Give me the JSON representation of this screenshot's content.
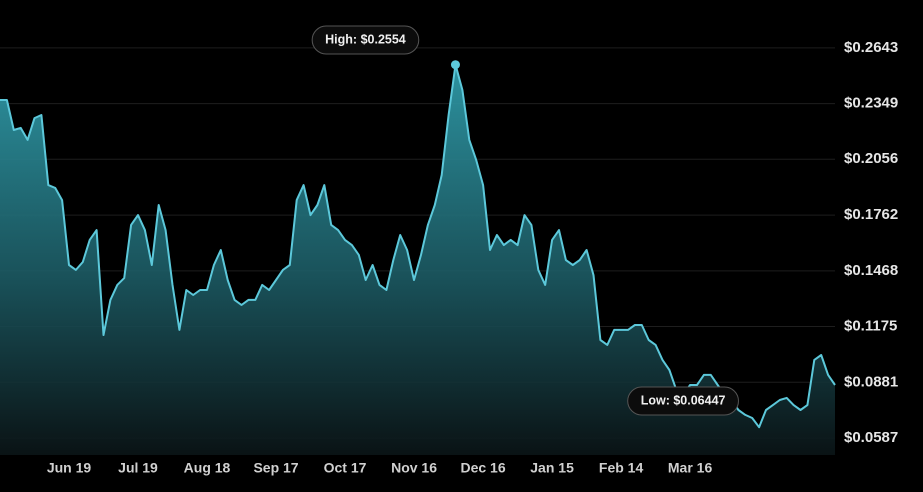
{
  "chart_data": {
    "type": "area",
    "color": "#5cc8da",
    "ylim": [
      0.0498,
      0.2895
    ],
    "yticks": [
      {
        "value": 0.0587,
        "label": "$0.0587"
      },
      {
        "value": 0.0881,
        "label": "$0.0881"
      },
      {
        "value": 0.1175,
        "label": "$0.1175"
      },
      {
        "value": 0.1468,
        "label": "$0.1468"
      },
      {
        "value": 0.1762,
        "label": "$0.1762"
      },
      {
        "value": 0.2056,
        "label": "$0.2056"
      },
      {
        "value": 0.2349,
        "label": "$0.2349"
      },
      {
        "value": 0.2643,
        "label": "$0.2643"
      }
    ],
    "grid": true,
    "categories": [
      null,
      null,
      null,
      null,
      null,
      null,
      null,
      null,
      null,
      null,
      "Jun 19",
      null,
      null,
      null,
      null,
      null,
      null,
      null,
      null,
      null,
      "Jul 19",
      null,
      null,
      null,
      null,
      null,
      null,
      null,
      null,
      null,
      "Aug 18",
      null,
      null,
      null,
      null,
      null,
      null,
      null,
      null,
      null,
      "Sep 17",
      null,
      null,
      null,
      null,
      null,
      null,
      null,
      null,
      null,
      "Oct 17",
      null,
      null,
      null,
      null,
      null,
      null,
      null,
      null,
      null,
      "Nov 16",
      null,
      null,
      null,
      null,
      null,
      null,
      null,
      null,
      null,
      "Dec 16",
      null,
      null,
      null,
      null,
      null,
      null,
      null,
      null,
      null,
      "Jan 15",
      null,
      null,
      null,
      null,
      null,
      null,
      null,
      null,
      null,
      "Feb 14",
      null,
      null,
      null,
      null,
      null,
      null,
      null,
      null,
      null,
      "Mar 16",
      null,
      null,
      null,
      null,
      null,
      null,
      null,
      null,
      null,
      null,
      null,
      null,
      null,
      null,
      null,
      null,
      null,
      null,
      null,
      null,
      null
    ],
    "values": [
      0.2368,
      0.2368,
      0.221,
      0.2221,
      0.2158,
      0.2273,
      0.2289,
      0.192,
      0.1905,
      0.1841,
      0.1499,
      0.1473,
      0.1515,
      0.1631,
      0.1683,
      0.113,
      0.1315,
      0.1394,
      0.143,
      0.171,
      0.1762,
      0.1683,
      0.1499,
      0.1815,
      0.1683,
      0.1394,
      0.1157,
      0.1367,
      0.1341,
      0.1367,
      0.1367,
      0.1499,
      0.1578,
      0.142,
      0.1315,
      0.1288,
      0.1315,
      0.1315,
      0.1394,
      0.1367,
      0.142,
      0.1473,
      0.1499,
      0.1841,
      0.192,
      0.1762,
      0.1815,
      0.192,
      0.171,
      0.1683,
      0.1631,
      0.1604,
      0.1552,
      0.142,
      0.1499,
      0.1394,
      0.1367,
      0.1525,
      0.1657,
      0.1578,
      0.142,
      0.1552,
      0.171,
      0.1815,
      0.1973,
      0.2289,
      0.2554,
      0.2421,
      0.2158,
      0.2052,
      0.192,
      0.1578,
      0.1657,
      0.1604,
      0.1631,
      0.1604,
      0.1762,
      0.171,
      0.1473,
      0.1394,
      0.1631,
      0.1683,
      0.1525,
      0.1499,
      0.1525,
      0.1578,
      0.1446,
      0.1104,
      0.1078,
      0.1157,
      0.1157,
      0.1157,
      0.1183,
      0.1183,
      0.1104,
      0.1078,
      0.0999,
      0.0946,
      0.0841,
      0.0814,
      0.0867,
      0.0867,
      0.092,
      0.092,
      0.0867,
      0.0814,
      0.0788,
      0.0735,
      0.0709,
      0.0693,
      0.06447,
      0.0735,
      0.0761,
      0.0788,
      0.0799,
      0.0761,
      0.0735,
      0.0761,
      0.0999,
      0.1025,
      0.092,
      0.0867
    ],
    "high": {
      "value": 0.2554,
      "label": "High: $0.2554"
    },
    "low": {
      "value": 0.06447,
      "label": "Low: $0.06447"
    }
  }
}
